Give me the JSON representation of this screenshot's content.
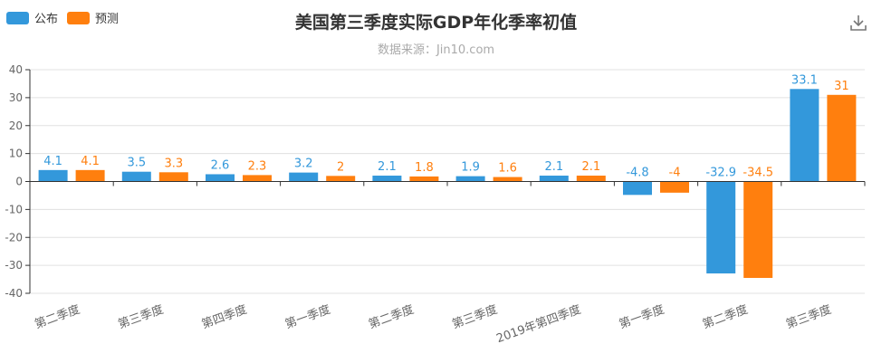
{
  "colors": {
    "published": "#3398db",
    "forecast": "#ff7f0e",
    "axis": "#333333",
    "grid": "#e0e0e0",
    "label": "#666666"
  },
  "toolbar": {
    "download_icon": "download-icon"
  },
  "chart_data": {
    "type": "bar",
    "title": "美国第三季度实际GDP年化季率初值",
    "subtitle": "数据来源：Jin10.com",
    "legend_position": "top-left",
    "grid": true,
    "ylim": [
      -40,
      40
    ],
    "yticks": [
      -40,
      -30,
      -20,
      -10,
      0,
      10,
      20,
      30,
      40
    ],
    "categories": [
      "第二季度",
      "第三季度",
      "第四季度",
      "第一季度",
      "第二季度",
      "第三季度",
      "2019年第四季度",
      "第一季度",
      "第二季度",
      "第三季度"
    ],
    "series": [
      {
        "name": "公布",
        "color": "#3398db",
        "values": [
          4.1,
          3.5,
          2.6,
          3.2,
          2.1,
          1.9,
          2.1,
          -4.8,
          -32.9,
          33.1
        ]
      },
      {
        "name": "预测",
        "color": "#ff7f0e",
        "values": [
          4.1,
          3.3,
          2.3,
          2,
          1.8,
          1.6,
          2.1,
          -4,
          -34.5,
          31
        ]
      }
    ]
  }
}
